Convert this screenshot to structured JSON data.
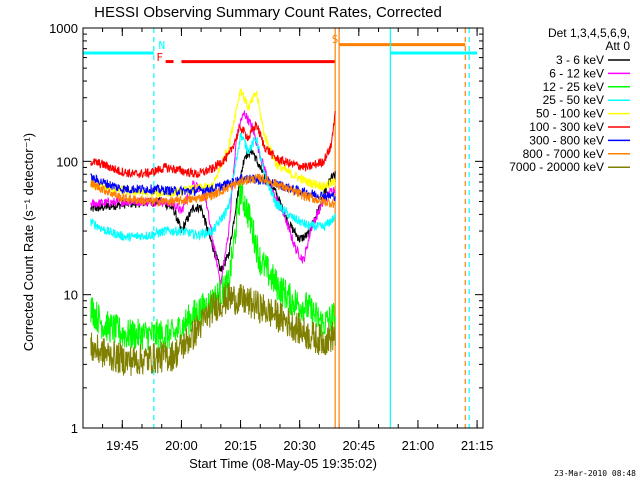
{
  "chart_data": {
    "type": "line",
    "title": "HESSI Observing Summary Count Rates, Corrected",
    "xlabel": "Start Time (08-May-05 19:35:02)",
    "ylabel": "Corrected Count Rate (s⁻¹ detector⁻¹)",
    "ylim": [
      1,
      1000
    ],
    "y_scale": "log",
    "xlim": [
      "19:35:02",
      "21:16:30"
    ],
    "x_tick_labels": [
      "19:45",
      "20:00",
      "20:15",
      "20:30",
      "20:45",
      "21:00",
      "21:15"
    ],
    "y_tick_labels": [
      "1",
      "10",
      "100",
      "1000"
    ],
    "legend": {
      "header": [
        "Det 1,3,4,5,6,9,",
        "Att 0"
      ],
      "placement": "right"
    },
    "series": [
      {
        "name": "3 - 6 keV",
        "color": "#000000",
        "points": [
          [
            "19:37",
            44
          ],
          [
            "19:46",
            48
          ],
          [
            "19:55",
            50
          ],
          [
            "19:58",
            44
          ],
          [
            "20:00",
            30
          ],
          [
            "20:03",
            45
          ],
          [
            "20:05",
            45
          ],
          [
            "20:07",
            28
          ],
          [
            "20:10",
            15
          ],
          [
            "20:12",
            20
          ],
          [
            "20:14",
            50
          ],
          [
            "20:16",
            110
          ],
          [
            "20:18",
            120
          ],
          [
            "20:20",
            88
          ],
          [
            "20:24",
            58
          ],
          [
            "20:27",
            35
          ],
          [
            "20:30",
            26
          ],
          [
            "20:32",
            28
          ],
          [
            "20:35",
            45
          ],
          [
            "20:37",
            65
          ],
          [
            "20:38",
            75
          ],
          [
            "20:39",
            78
          ]
        ]
      },
      {
        "name": "6 - 12 keV",
        "color": "#ff00ff",
        "points": [
          [
            "19:37",
            48
          ],
          [
            "19:46",
            50
          ],
          [
            "19:55",
            50
          ],
          [
            "19:58",
            48
          ],
          [
            "20:00",
            42
          ],
          [
            "20:03",
            70
          ],
          [
            "20:06",
            55
          ],
          [
            "20:08",
            25
          ],
          [
            "20:10",
            12
          ],
          [
            "20:12",
            30
          ],
          [
            "20:14",
            150
          ],
          [
            "20:15",
            200
          ],
          [
            "20:16",
            230
          ],
          [
            "20:18",
            180
          ],
          [
            "20:20",
            110
          ],
          [
            "20:23",
            60
          ],
          [
            "20:26",
            40
          ],
          [
            "20:29",
            22
          ],
          [
            "20:31",
            18
          ],
          [
            "20:33",
            32
          ],
          [
            "20:36",
            50
          ],
          [
            "20:38",
            60
          ],
          [
            "20:39",
            62
          ]
        ]
      },
      {
        "name": "12 - 25 keV",
        "color": "#00ff00",
        "points": [
          [
            "19:37",
            8
          ],
          [
            "19:40",
            6
          ],
          [
            "19:46",
            5
          ],
          [
            "19:52",
            5
          ],
          [
            "19:58",
            5
          ],
          [
            "20:03",
            7
          ],
          [
            "20:08",
            9
          ],
          [
            "20:12",
            12
          ],
          [
            "20:15",
            60
          ],
          [
            "20:17",
            40
          ],
          [
            "20:20",
            18
          ],
          [
            "20:24",
            12
          ],
          [
            "20:28",
            9
          ],
          [
            "20:32",
            8
          ],
          [
            "20:36",
            6
          ],
          [
            "20:39",
            7
          ]
        ]
      },
      {
        "name": "25 - 50 keV",
        "color": "#00ffff",
        "points": [
          [
            "19:37",
            35
          ],
          [
            "19:41",
            30
          ],
          [
            "19:46",
            27
          ],
          [
            "19:52",
            28
          ],
          [
            "19:56",
            30
          ],
          [
            "20:00",
            30
          ],
          [
            "20:04",
            28
          ],
          [
            "20:08",
            30
          ],
          [
            "20:12",
            45
          ],
          [
            "20:15",
            160
          ],
          [
            "20:17",
            120
          ],
          [
            "20:19",
            150
          ],
          [
            "20:21",
            80
          ],
          [
            "20:24",
            48
          ],
          [
            "20:28",
            38
          ],
          [
            "20:32",
            33
          ],
          [
            "20:36",
            32
          ],
          [
            "20:39",
            38
          ]
        ]
      },
      {
        "name": "50 - 100 keV",
        "color": "#ffff00",
        "points": [
          [
            "19:37",
            68
          ],
          [
            "19:42",
            62
          ],
          [
            "19:46",
            60
          ],
          [
            "19:52",
            58
          ],
          [
            "19:58",
            58
          ],
          [
            "20:03",
            62
          ],
          [
            "20:08",
            65
          ],
          [
            "20:12",
            130
          ],
          [
            "20:15",
            350
          ],
          [
            "20:17",
            250
          ],
          [
            "20:19",
            330
          ],
          [
            "20:21",
            160
          ],
          [
            "20:24",
            95
          ],
          [
            "20:28",
            80
          ],
          [
            "20:32",
            70
          ],
          [
            "20:36",
            65
          ],
          [
            "20:39",
            70
          ]
        ]
      },
      {
        "name": "100 - 300 keV",
        "color": "#ff0000",
        "points": [
          [
            "19:37",
            100
          ],
          [
            "19:40",
            95
          ],
          [
            "19:44",
            85
          ],
          [
            "19:48",
            80
          ],
          [
            "19:52",
            82
          ],
          [
            "19:56",
            90
          ],
          [
            "20:00",
            85
          ],
          [
            "20:04",
            80
          ],
          [
            "20:08",
            88
          ],
          [
            "20:12",
            110
          ],
          [
            "20:15",
            180
          ],
          [
            "20:17",
            150
          ],
          [
            "20:19",
            190
          ],
          [
            "20:21",
            130
          ],
          [
            "20:24",
            105
          ],
          [
            "20:28",
            95
          ],
          [
            "20:32",
            90
          ],
          [
            "20:36",
            100
          ],
          [
            "20:38",
            130
          ],
          [
            "20:39",
            240
          ]
        ]
      },
      {
        "name": "300 - 800 keV",
        "color": "#0000ff",
        "points": [
          [
            "19:37",
            75
          ],
          [
            "19:41",
            68
          ],
          [
            "19:45",
            62
          ],
          [
            "19:52",
            62
          ],
          [
            "19:58",
            60
          ],
          [
            "20:03",
            60
          ],
          [
            "20:08",
            62
          ],
          [
            "20:12",
            68
          ],
          [
            "20:16",
            75
          ],
          [
            "20:20",
            72
          ],
          [
            "20:24",
            68
          ],
          [
            "20:28",
            62
          ],
          [
            "20:32",
            58
          ],
          [
            "20:36",
            55
          ],
          [
            "20:39",
            55
          ]
        ]
      },
      {
        "name": "800 - 7000 keV",
        "color": "#ff8000",
        "points": [
          [
            "19:37",
            68
          ],
          [
            "19:41",
            60
          ],
          [
            "19:45",
            53
          ],
          [
            "19:52",
            50
          ],
          [
            "19:58",
            50
          ],
          [
            "20:03",
            52
          ],
          [
            "20:08",
            56
          ],
          [
            "20:12",
            64
          ],
          [
            "20:16",
            72
          ],
          [
            "20:20",
            75
          ],
          [
            "20:24",
            68
          ],
          [
            "20:28",
            60
          ],
          [
            "20:32",
            54
          ],
          [
            "20:36",
            50
          ],
          [
            "20:39",
            48
          ]
        ]
      },
      {
        "name": "7000 - 20000 keV",
        "color": "#808000",
        "points": [
          [
            "19:37",
            4
          ],
          [
            "19:42",
            3.5
          ],
          [
            "19:46",
            3.2
          ],
          [
            "19:52",
            3.3
          ],
          [
            "19:58",
            3.5
          ],
          [
            "20:03",
            5
          ],
          [
            "20:08",
            8
          ],
          [
            "20:12",
            9.5
          ],
          [
            "20:16",
            9
          ],
          [
            "20:20",
            8
          ],
          [
            "20:24",
            7
          ],
          [
            "20:28",
            6
          ],
          [
            "20:32",
            5
          ],
          [
            "20:36",
            4.5
          ],
          [
            "20:39",
            5
          ]
        ]
      }
    ],
    "annotations": {
      "flags": [
        {
          "label": "N",
          "color": "#00ffff",
          "at": "19:53"
        },
        {
          "label": "F",
          "color": "#ff0000",
          "at": "19:56"
        },
        {
          "label": "S",
          "color": "#ff8000",
          "at": "20:40"
        }
      ],
      "flag_bars": [
        {
          "color": "#00ffff",
          "from": "19:35:02",
          "to": "19:53",
          "level": 650
        },
        {
          "color": "#ff0000",
          "from": "19:56",
          "to": "19:58",
          "level": 560
        },
        {
          "color": "#ff0000",
          "from": "20:00",
          "to": "20:39",
          "level": 560
        },
        {
          "color": "#ff8000",
          "from": "20:40",
          "to": "21:12",
          "level": 750
        },
        {
          "color": "#00ffff",
          "from": "20:53",
          "to": "21:15",
          "level": 650
        }
      ],
      "vlines": [
        {
          "color": "#00ffff",
          "style": "dashed",
          "at": "19:53"
        },
        {
          "color": "#ff8000",
          "style": "solid",
          "at": "20:39"
        },
        {
          "color": "#ff8000",
          "style": "solid",
          "at": "20:40"
        },
        {
          "color": "#00ffff",
          "style": "solid",
          "at": "20:53"
        },
        {
          "color": "#ff8000",
          "style": "dashed",
          "at": "21:12"
        },
        {
          "color": "#00ffff",
          "style": "dashed",
          "at": "21:13"
        }
      ]
    },
    "grid": false
  },
  "footer_timestamp": "23-Mar-2010 08:48"
}
